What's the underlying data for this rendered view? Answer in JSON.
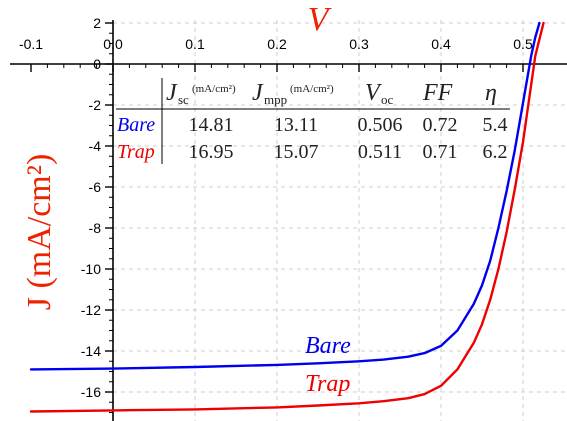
{
  "chart_data": {
    "type": "line",
    "xlabel": "V",
    "ylabel": "J (mA/cm²)",
    "xlim": [
      -0.1,
      0.55
    ],
    "ylim": [
      -17.5,
      2
    ],
    "x_ticks": [
      -0.1,
      0.0,
      0.1,
      0.2,
      0.3,
      0.4,
      0.5
    ],
    "x_tick_labels": [
      "-0.1",
      "0.0",
      "0.1",
      "0.2",
      "0.3",
      "0.4",
      "0.5"
    ],
    "y_ticks": [
      2,
      0,
      -2,
      -4,
      -6,
      -8,
      -10,
      -12,
      -14,
      -16
    ],
    "y_tick_labels": [
      "2",
      "0",
      "-2",
      "-4",
      "-6",
      "-8",
      "-10",
      "-12",
      "-14",
      "-16"
    ],
    "grid": true,
    "series": [
      {
        "name": "Bare",
        "color": "#0000ee",
        "x": [
          -0.1,
          0.0,
          0.1,
          0.2,
          0.25,
          0.3,
          0.33,
          0.36,
          0.38,
          0.4,
          0.42,
          0.44,
          0.45,
          0.46,
          0.47,
          0.48,
          0.49,
          0.5,
          0.51,
          0.515,
          0.52
        ],
        "y": [
          -14.9,
          -14.86,
          -14.78,
          -14.68,
          -14.6,
          -14.5,
          -14.42,
          -14.28,
          -14.1,
          -13.75,
          -13.0,
          -11.7,
          -10.8,
          -9.6,
          -8.0,
          -6.2,
          -4.2,
          -1.9,
          0.4,
          1.3,
          2.0
        ]
      },
      {
        "name": "Trap",
        "color": "#ee0000",
        "x": [
          -0.1,
          0.0,
          0.1,
          0.2,
          0.25,
          0.3,
          0.33,
          0.36,
          0.38,
          0.4,
          0.42,
          0.44,
          0.45,
          0.46,
          0.47,
          0.48,
          0.49,
          0.5,
          0.51,
          0.515,
          0.525
        ],
        "y": [
          -16.95,
          -16.9,
          -16.85,
          -16.75,
          -16.66,
          -16.55,
          -16.45,
          -16.3,
          -16.1,
          -15.7,
          -14.9,
          -13.6,
          -12.7,
          -11.5,
          -10.0,
          -8.2,
          -6.1,
          -3.8,
          -1.0,
          0.4,
          2.0
        ]
      }
    ],
    "curve_labels": [
      "Bare",
      "Trap"
    ],
    "table": {
      "columns": [
        {
          "main": "J",
          "sub": "sc",
          "unit": "(mA/cm²)"
        },
        {
          "main": "J",
          "sub": "mpp",
          "unit": "(mA/cm²)"
        },
        {
          "main": "V",
          "sub": "oc",
          "unit": ""
        },
        {
          "main": "FF",
          "sub": "",
          "unit": ""
        },
        {
          "main": "η",
          "sub": "",
          "unit": ""
        }
      ],
      "rows": [
        {
          "label": "Bare",
          "color": "#0000ee",
          "values": [
            "14.81",
            "13.11",
            "0.506",
            "0.72",
            "5.4"
          ]
        },
        {
          "label": "Trap",
          "color": "#ee0000",
          "values": [
            "16.95",
            "15.07",
            "0.511",
            "0.71",
            "6.2"
          ]
        }
      ]
    }
  }
}
